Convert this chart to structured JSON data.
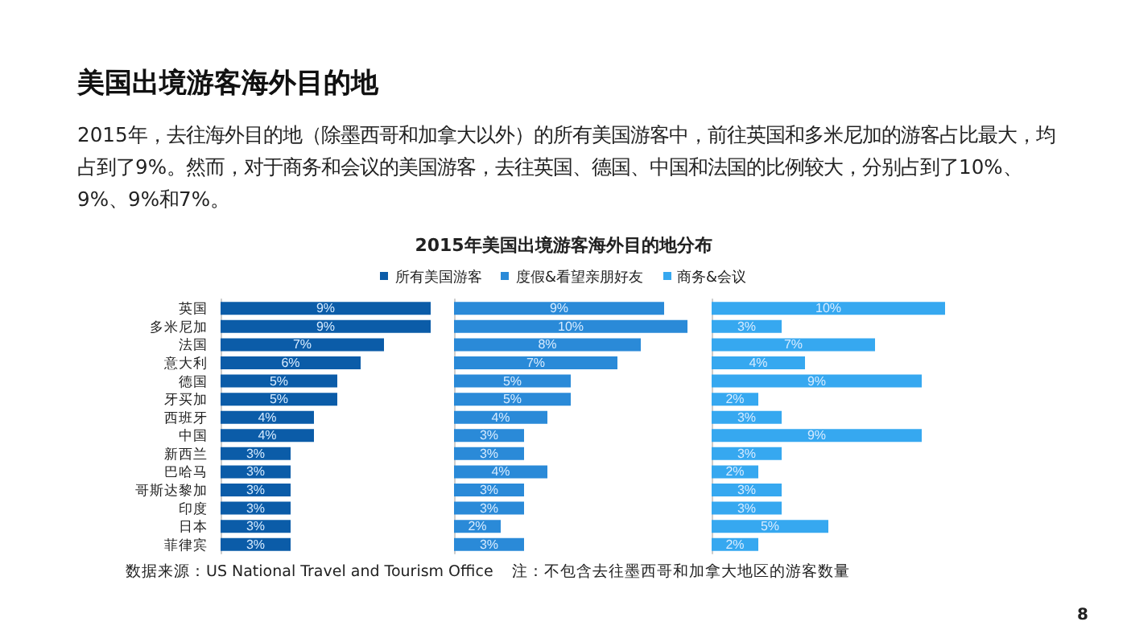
{
  "chart_data": [
    {
      "type": "bar",
      "orientation": "horizontal",
      "title": "美国出境游客海外目的地",
      "subtitle": "2015年，去往海外目的地（除墨西哥和加拿大以外）的所有美国游客中，前往英国和多米尼加的游客占比最大，均占到了9%。然而，对于商务和会议的美国游客，去往英国、德国、中国和法国的比例较大，分别占到了10%、9%、9%和7%。",
      "annotations": [
        "2015年美国出境游客海外目的地分布",
        "数据来源：US National Travel and Tourism Office",
        "注：不包含去往墨西哥和加拿大地区的游客数量",
        "8"
      ],
      "categories": [
        "英国",
        "多米尼加",
        "法国",
        "意大利",
        "德国",
        "牙买加",
        "西班牙",
        "中国",
        "新西兰",
        "巴哈马",
        "哥斯达黎加",
        "印度",
        "日本",
        "菲律宾"
      ],
      "series": [
        {
          "name": "所有美国游客",
          "color": "#0b5ca8",
          "values": [
            9,
            9,
            7,
            6,
            5,
            5,
            4,
            4,
            3,
            3,
            3,
            3,
            3,
            3
          ],
          "value_labels": [
            "9%",
            "9%",
            "7%",
            "6%",
            "5%",
            "5%",
            "4%",
            "4%",
            "3%",
            "3%",
            "3%",
            "3%",
            "3%",
            "3%"
          ]
        }
      ],
      "legend": "top",
      "tick_labels": "y"
    },
    {
      "type": "bar",
      "orientation": "horizontal",
      "categories": [
        null,
        null,
        null,
        null,
        null,
        null,
        null,
        null,
        null,
        null,
        null,
        null,
        null,
        null
      ],
      "series": [
        {
          "name": "度假&看望亲朋好友",
          "color": "#2a8ad8",
          "values": [
            9,
            10,
            8,
            7,
            5,
            5,
            4,
            3,
            3,
            4,
            3,
            3,
            2,
            3
          ],
          "value_labels": [
            "9%",
            "10%",
            "8%",
            "7%",
            "5%",
            "5%",
            "4%",
            "3%",
            "3%",
            "4%",
            "3%",
            "3%",
            "2%",
            "3%"
          ]
        }
      ],
      "legend": "top",
      "tick_labels": false
    },
    {
      "type": "bar",
      "orientation": "horizontal",
      "categories": [
        null,
        null,
        null,
        null,
        null,
        null,
        null,
        null,
        null,
        null,
        null,
        null,
        null,
        null
      ],
      "series": [
        {
          "name": "商务&会议",
          "color": "#36a8f0",
          "values": [
            10,
            3,
            7,
            4,
            9,
            2,
            3,
            9,
            3,
            2,
            3,
            3,
            5,
            2
          ],
          "value_labels": [
            "10%",
            "3%",
            "7%",
            "4%",
            "9%",
            "2%",
            "3%",
            "9%",
            "3%",
            "2%",
            "3%",
            "3%",
            "5%",
            "2%"
          ]
        }
      ],
      "legend": "top",
      "tick_labels": false
    }
  ]
}
